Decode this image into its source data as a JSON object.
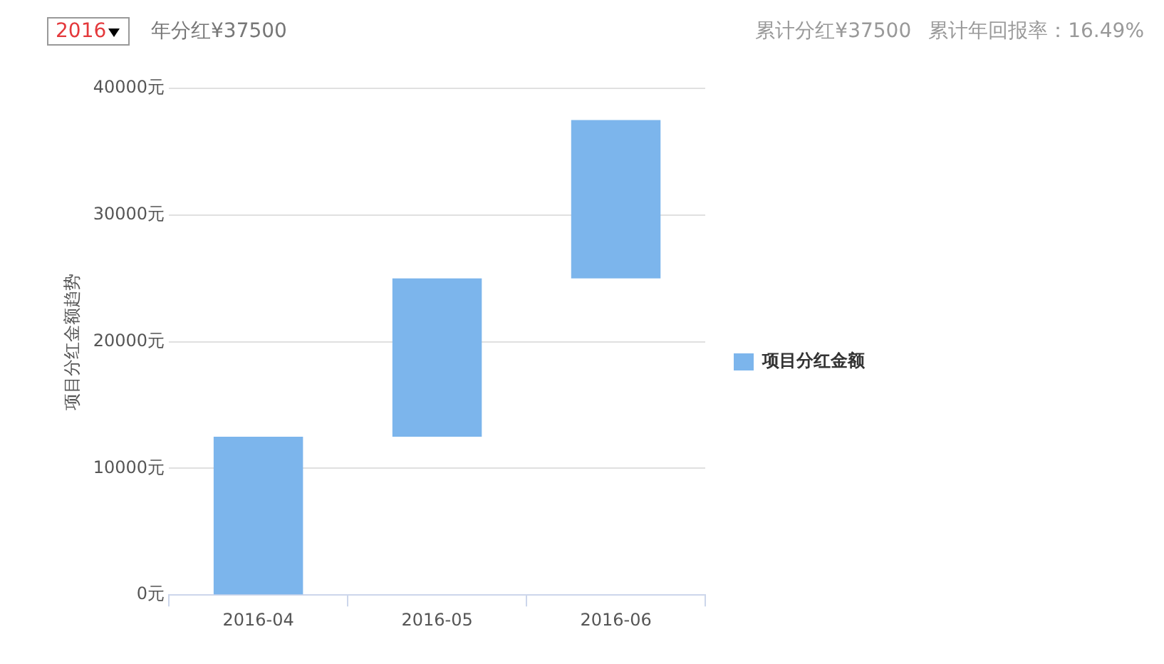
{
  "chart_data": {
    "type": "bar",
    "ylabel": "项目分红金额趋势",
    "annotations": [
      "2016",
      "年分红¥37500",
      "累计分红¥37500",
      "累计年回报率：16.49%"
    ],
    "categories": [
      "2016-04",
      "2016-05",
      "2016-06"
    ],
    "series": [
      {
        "name": "项目分红金额",
        "color": "#7cb5ec",
        "values": [
          12500,
          12500,
          12500
        ],
        "base": [
          0,
          12500,
          25000
        ]
      }
    ],
    "ylim": [
      0,
      40000
    ],
    "yticks": [
      {
        "value": 0,
        "label": "0元"
      },
      {
        "value": 10000,
        "label": "10000元"
      },
      {
        "value": 20000,
        "label": "20000元"
      },
      {
        "value": 30000,
        "label": "30000元"
      },
      {
        "value": 40000,
        "label": "40000元"
      }
    ],
    "grid": "y",
    "legend": "right"
  }
}
